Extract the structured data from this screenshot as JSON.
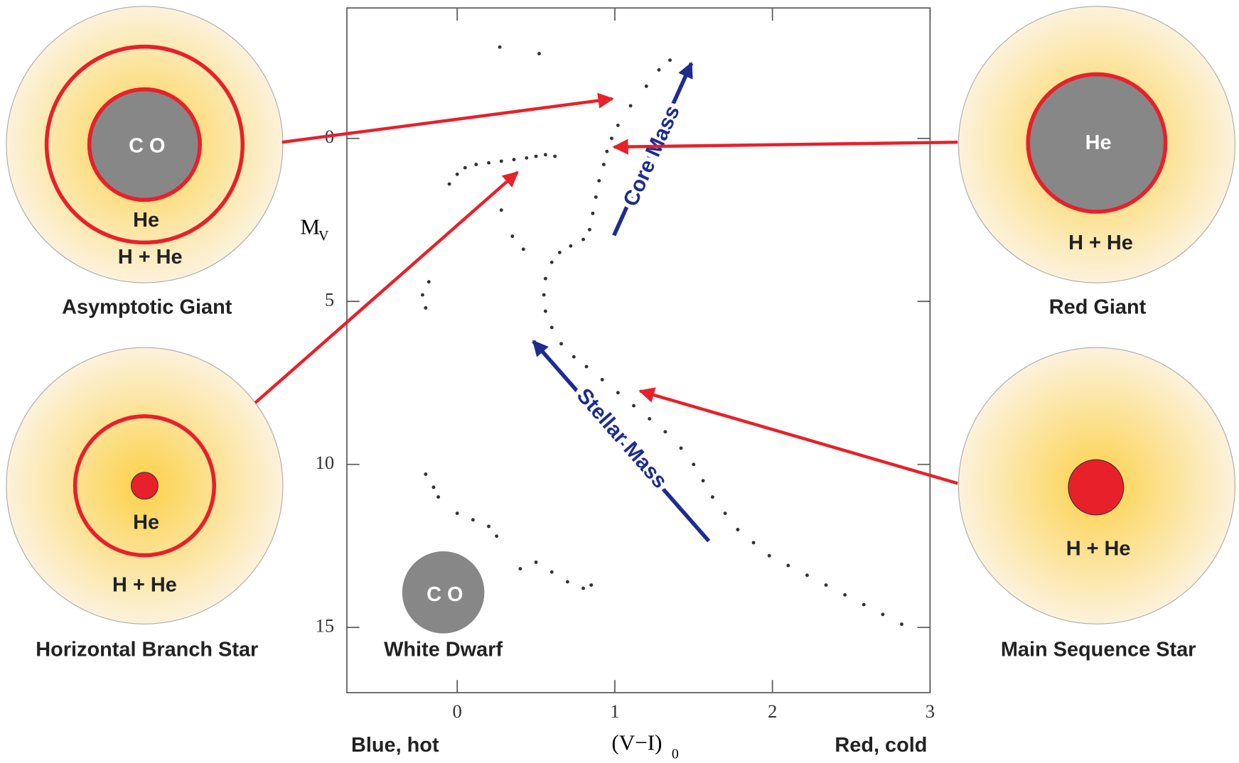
{
  "chart_data": {
    "type": "scatter",
    "x_label": "(V−I)",
    "x_label_sub": "0",
    "y_label": "M",
    "y_label_sub": "V",
    "x_left_note": "Blue, hot",
    "x_right_note": "Red, cold",
    "xlim": [
      -0.7,
      3
    ],
    "xticks": [
      0,
      1,
      2,
      3
    ],
    "ylim": [
      -4,
      17
    ],
    "y_inverted": true,
    "yticks": [
      0,
      5,
      10,
      15
    ],
    "color": "#333333",
    "x": [
      1.35,
      1.28,
      1.2,
      1.1,
      1.02,
      0.98,
      0.95,
      0.93,
      0.9,
      0.88,
      0.86,
      0.84,
      0.8,
      0.72,
      0.65,
      0.6,
      0.56,
      0.55,
      0.56,
      0.6,
      0.66,
      0.74,
      0.82,
      0.92,
      1.02,
      1.12,
      1.22,
      1.32,
      1.42,
      1.5,
      1.56,
      1.62,
      1.7,
      1.78,
      1.88,
      1.98,
      2.1,
      2.22,
      2.34,
      2.46,
      2.58,
      2.7,
      2.82,
      -0.05,
      0.0,
      0.05,
      0.12,
      0.2,
      0.28,
      0.36,
      0.44,
      0.5,
      0.56,
      0.62,
      -0.22,
      -0.2,
      -0.18,
      0.28,
      0.35,
      0.42,
      0.27,
      0.52,
      -0.2,
      -0.15,
      -0.12,
      0.0,
      0.1,
      0.2,
      0.25,
      0.4,
      0.5,
      0.6,
      0.7,
      0.8,
      0.85
    ],
    "y": [
      -2.4,
      -2.1,
      -1.6,
      -1.0,
      -0.4,
      0,
      0.4,
      0.8,
      1.3,
      1.8,
      2.3,
      2.8,
      3.1,
      3.3,
      3.5,
      3.8,
      4.3,
      4.8,
      5.3,
      5.8,
      6.3,
      6.7,
      7.0,
      7.4,
      7.8,
      8.2,
      8.6,
      9.0,
      9.5,
      10.0,
      10.5,
      11.0,
      11.5,
      12.0,
      12.4,
      12.8,
      13.1,
      13.4,
      13.7,
      14.0,
      14.3,
      14.6,
      14.9,
      1.4,
      1.1,
      0.9,
      0.8,
      0.75,
      0.7,
      0.65,
      0.6,
      0.55,
      0.5,
      0.55,
      4.8,
      5.2,
      4.4,
      2.2,
      3.0,
      3.4,
      -2.8,
      -2.6,
      10.3,
      10.7,
      11.0,
      11.5,
      11.7,
      11.9,
      12.2,
      13.2,
      13.0,
      13.3,
      13.6,
      13.8,
      13.7
    ],
    "annotations": [
      "Core Mass",
      "Stellar Mass"
    ]
  },
  "diagram": {
    "asymptotic_giant": {
      "name": "Asymptotic Giant",
      "core": "C O",
      "shell": "He",
      "envelope": "H + He"
    },
    "horizontal_branch": {
      "name": "Horizontal Branch Star",
      "shell": "He",
      "envelope": "H + He"
    },
    "red_giant": {
      "name": "Red Giant",
      "core": "He",
      "envelope": "H + He"
    },
    "main_sequence": {
      "name": "Main Sequence Star",
      "envelope": "H + He"
    },
    "white_dwarf": {
      "name": "White Dwarf",
      "core": "C O"
    }
  }
}
